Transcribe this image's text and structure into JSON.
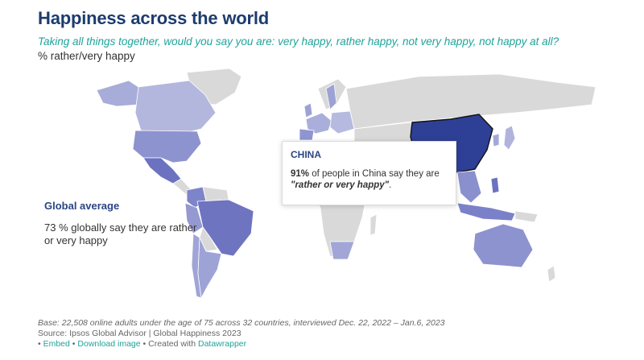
{
  "header": {
    "title": "Happiness across the world",
    "question": "Taking all things together, would you say you are: very happy, rather happy, not very happy, not happy at all?",
    "unit": "% rather/very happy"
  },
  "global_average": {
    "title": "Global average",
    "text": "73 % globally say they are rather or very happy"
  },
  "tooltip": {
    "title": "CHINA",
    "value": "91%",
    "text_mid": " of people in China say they are ",
    "quote": "\"rather or very happy\"",
    "end": "."
  },
  "colors": {
    "title": "#1d3c6e",
    "accent": "#1fa39a",
    "no_data": "#d9d9d9",
    "highlight": "#2e3f96"
  },
  "footer": {
    "base": "Base: 22,508 online adults under the age of 75 across 32 countries, interviewed Dec. 22, 2022 – Jan.6, 2023",
    "source": "Source: Ipsos Global Advisor | Global Happiness 2023",
    "embed": "Embed",
    "download": "Download image",
    "created": "Created with",
    "datawrapper": "Datawrapper"
  }
}
